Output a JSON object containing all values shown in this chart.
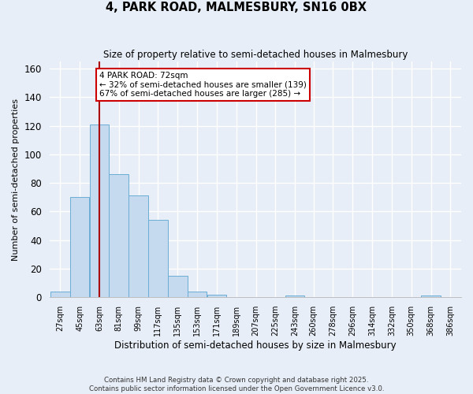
{
  "title": "4, PARK ROAD, MALMESBURY, SN16 0BX",
  "subtitle": "Size of property relative to semi-detached houses in Malmesbury",
  "xlabel": "Distribution of semi-detached houses by size in Malmesbury",
  "ylabel": "Number of semi-detached properties",
  "footnote": "Contains HM Land Registry data © Crown copyright and database right 2025.\nContains public sector information licensed under the Open Government Licence v3.0.",
  "bins": [
    "27sqm",
    "45sqm",
    "63sqm",
    "81sqm",
    "99sqm",
    "117sqm",
    "135sqm",
    "153sqm",
    "171sqm",
    "189sqm",
    "207sqm",
    "225sqm",
    "243sqm",
    "260sqm",
    "278sqm",
    "296sqm",
    "314sqm",
    "332sqm",
    "350sqm",
    "368sqm",
    "386sqm"
  ],
  "bin_edges": [
    27,
    45,
    63,
    81,
    99,
    117,
    135,
    153,
    171,
    189,
    207,
    225,
    243,
    260,
    278,
    296,
    314,
    332,
    350,
    368,
    386
  ],
  "counts": [
    4,
    70,
    121,
    86,
    71,
    54,
    15,
    4,
    2,
    0,
    0,
    0,
    1,
    0,
    0,
    0,
    0,
    0,
    0,
    1
  ],
  "bar_color": "#c5d9ef",
  "bar_edge_color": "#6aadd5",
  "property_size": 72,
  "marker_line_color": "#aa0000",
  "annotation_box_color": "#cc0000",
  "annotation_text": "4 PARK ROAD: 72sqm\n← 32% of semi-detached houses are smaller (139)\n67% of semi-detached houses are larger (285) →",
  "ylim": [
    0,
    165
  ],
  "yticks": [
    0,
    20,
    40,
    60,
    80,
    100,
    120,
    140,
    160
  ],
  "background_color": "#e8eef7",
  "grid_color": "#ffffff",
  "figsize": [
    6.0,
    5.0
  ],
  "dpi": 100
}
